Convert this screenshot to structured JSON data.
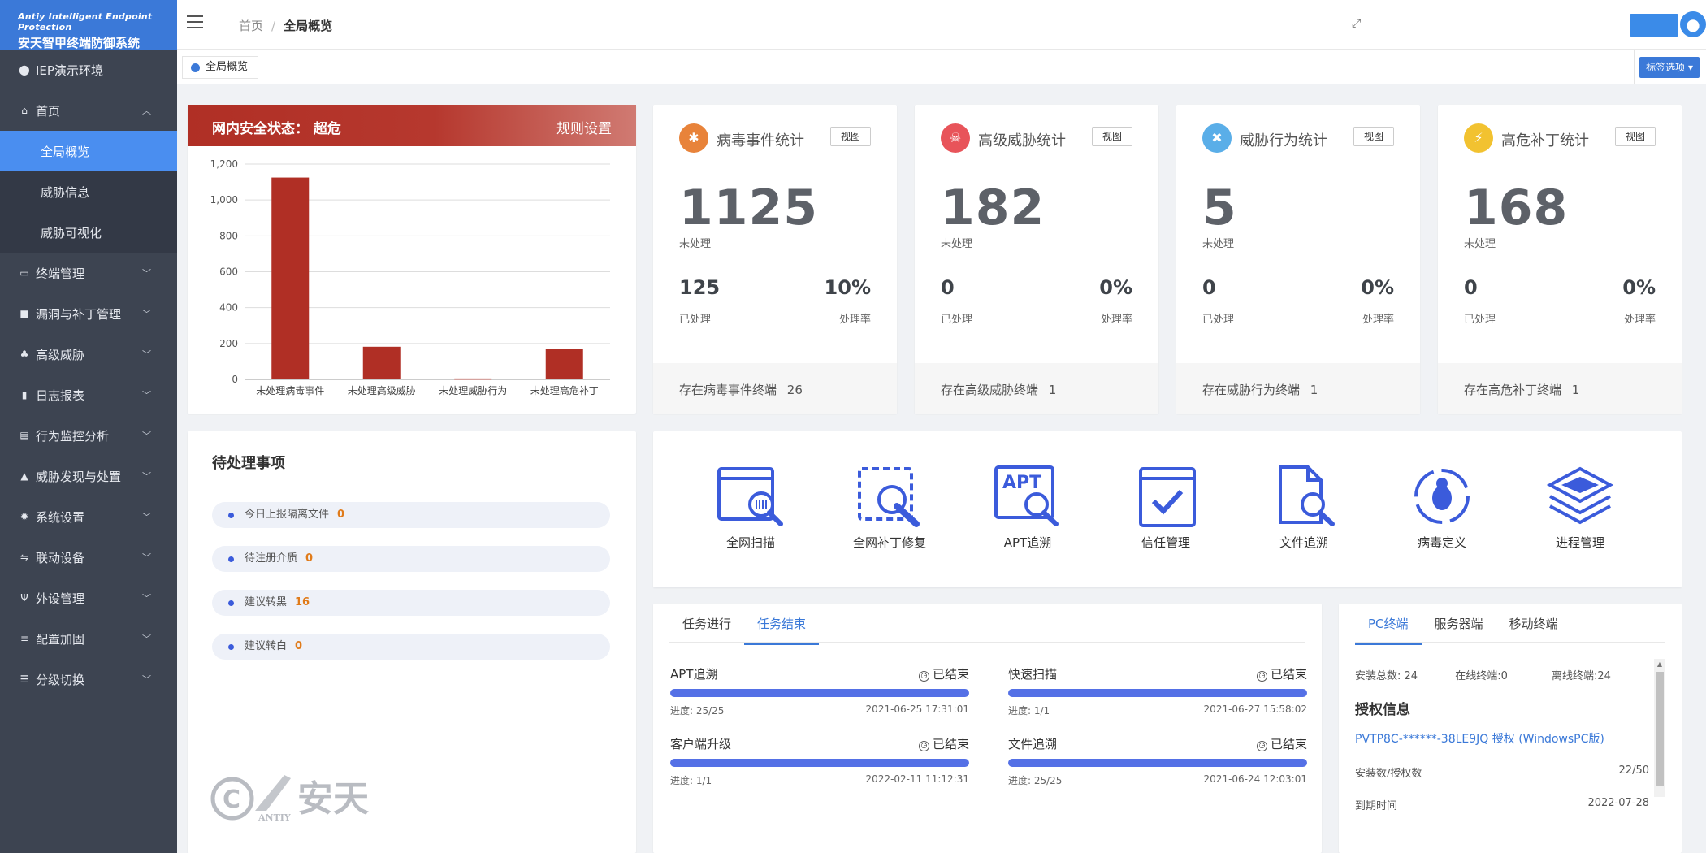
{
  "brand": {
    "en": "Antiy Intelligent Endpoint Protection",
    "cn": "安天智甲终端防御系统"
  },
  "sidebar": {
    "env": "IEP演示环境",
    "home": "首页",
    "sub": [
      "全局概览",
      "威胁信息",
      "威胁可视化"
    ],
    "items": [
      "终端管理",
      "漏洞与补丁管理",
      "高级威胁",
      "日志报表",
      "行为监控分析",
      "威胁发现与处置",
      "系统设置",
      "联动设备",
      "外设管理",
      "配置加固",
      "分级切换"
    ]
  },
  "header": {
    "crumb_home": "首页",
    "crumb_sep": "/",
    "crumb_current": "全局概览"
  },
  "tags": {
    "active_tag": "全局概览",
    "options_btn": "标签选项 ▾"
  },
  "security": {
    "title": "网内安全状态：  超危",
    "settings": "规则设置"
  },
  "chart_data": {
    "type": "bar",
    "categories": [
      "未处理病毒事件",
      "未处理高级威胁",
      "未处理威胁行为",
      "未处理高危补丁"
    ],
    "values": [
      1125,
      182,
      5,
      168
    ],
    "ylim": [
      0,
      1200
    ],
    "yticks": [
      "0",
      "200",
      "400",
      "600",
      "800",
      "1,000",
      "1,200"
    ],
    "bar_color": "#b02f25",
    "grid": true
  },
  "stats": [
    {
      "title": "病毒事件统计",
      "view": "视图",
      "big": "1125",
      "big_label": "未处理",
      "done": "125",
      "done_label": "已处理",
      "rate": "10%",
      "rate_label": "处理率",
      "foot": "存在病毒事件终端",
      "foot_val": "26",
      "color": "#e8833a",
      "icon": "bug-icon"
    },
    {
      "title": "高级威胁统计",
      "view": "视图",
      "big": "182",
      "big_label": "未处理",
      "done": "0",
      "done_label": "已处理",
      "rate": "0%",
      "rate_label": "处理率",
      "foot": "存在高级威胁终端",
      "foot_val": "1",
      "color": "#e8545a",
      "icon": "skull-icon"
    },
    {
      "title": "威胁行为统计",
      "view": "视图",
      "big": "5",
      "big_label": "未处理",
      "done": "0",
      "done_label": "已处理",
      "rate": "0%",
      "rate_label": "处理率",
      "foot": "存在威胁行为终端",
      "foot_val": "1",
      "color": "#5aaee8",
      "icon": "tools-icon"
    },
    {
      "title": "高危补丁统计",
      "view": "视图",
      "big": "168",
      "big_label": "未处理",
      "done": "0",
      "done_label": "已处理",
      "rate": "0%",
      "rate_label": "处理率",
      "foot": "存在高危补丁终端",
      "foot_val": "1",
      "color": "#f2c230",
      "icon": "bolt-icon"
    }
  ],
  "pending": {
    "title": "待处理事项",
    "items": [
      {
        "label": "今日上报隔离文件",
        "value": "0"
      },
      {
        "label": "待注册介质",
        "value": "0"
      },
      {
        "label": "建议转黑",
        "value": "16"
      },
      {
        "label": "建议转白",
        "value": "0"
      }
    ]
  },
  "tools": [
    {
      "label": "全网扫描",
      "icon": "network-scan-icon"
    },
    {
      "label": "全网补丁修复",
      "icon": "patch-repair-icon"
    },
    {
      "label": "APT追溯",
      "icon": "apt-trace-icon"
    },
    {
      "label": "信任管理",
      "icon": "trust-manage-icon"
    },
    {
      "label": "文件追溯",
      "icon": "file-trace-icon"
    },
    {
      "label": "病毒定义",
      "icon": "virus-define-icon"
    },
    {
      "label": "进程管理",
      "icon": "process-manage-icon"
    }
  ],
  "tasks": {
    "tabs": [
      "任务进行",
      "任务结束"
    ],
    "items": [
      {
        "name": "APT追溯",
        "status": "已结束",
        "progress": "进度: 25/25",
        "time": "2021-06-25 17:31:01"
      },
      {
        "name": "快速扫描",
        "status": "已结束",
        "progress": "进度: 1/1",
        "time": "2021-06-27 15:58:02"
      },
      {
        "name": "客户端升级",
        "status": "已结束",
        "progress": "进度: 1/1",
        "time": "2022-02-11 11:12:31"
      },
      {
        "name": "文件追溯",
        "status": "已结束",
        "progress": "进度: 25/25",
        "time": "2021-06-24 12:03:01"
      }
    ]
  },
  "pc": {
    "tabs": [
      "PC终端",
      "服务器端",
      "移动终端"
    ],
    "install_total": "安装总数: 24",
    "online": "在线终端:0",
    "offline": "离线终端:24",
    "auth_title": "授权信息",
    "license": "PVTP8C-******-38LE9JQ 授权 (WindowsPC版)",
    "install_auth_label": "安装数/授权数",
    "install_auth_val": "22/50",
    "expire_label": "到期时间",
    "expire_val": "2022-07-28"
  },
  "watermark": {
    "cn": "安天",
    "en": "ANTIY"
  }
}
